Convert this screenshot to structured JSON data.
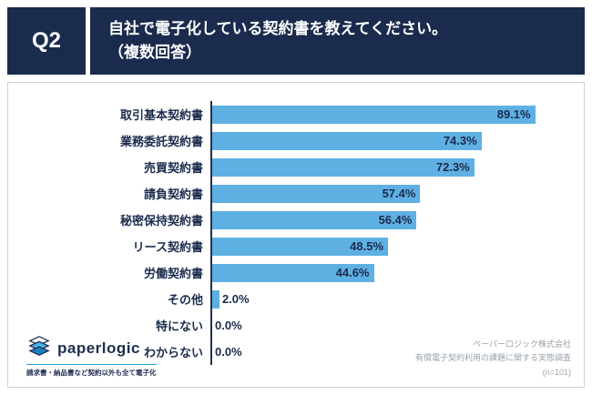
{
  "header": {
    "q_label": "Q2",
    "title_line1": "自社で電子化している契約書を教えてください。",
    "title_line2": "（複数回答）"
  },
  "chart_data": {
    "type": "bar",
    "orientation": "horizontal",
    "title": "自社で電子化している契約書を教えてください。（複数回答）",
    "categories": [
      "取引基本契約書",
      "業務委託契約書",
      "売買契約書",
      "請負契約書",
      "秘密保持契約書",
      "リース契約書",
      "労働契約書",
      "その他",
      "特にない",
      "わからない"
    ],
    "values": [
      89.1,
      74.3,
      72.3,
      57.4,
      56.4,
      48.5,
      44.6,
      2.0,
      0.0,
      0.0
    ],
    "value_labels": [
      "89.1%",
      "74.3%",
      "72.3%",
      "57.4%",
      "56.4%",
      "48.5%",
      "44.6%",
      "2.0%",
      "0.0%",
      "0.0%"
    ],
    "xlim": [
      0,
      100
    ],
    "grid": false,
    "legend": false,
    "bar_color": "#5fb0e2",
    "label_color": "#1b2b4d"
  },
  "logo": {
    "brand": "paperlogic",
    "tagline": "請求書・納品書など契約以外も全て電子化"
  },
  "footer": {
    "line1": "ペーパーロジック株式会社",
    "line2": "有償電子契約利用の課題に関する実態調査",
    "line3": "(n=101)"
  },
  "colors": {
    "header_bg": "#1b2b4d",
    "bar": "#5fb0e2",
    "text_dark": "#1b2b4d",
    "footer_text": "#9aa2aa",
    "panel_border": "#c9d1dc"
  }
}
